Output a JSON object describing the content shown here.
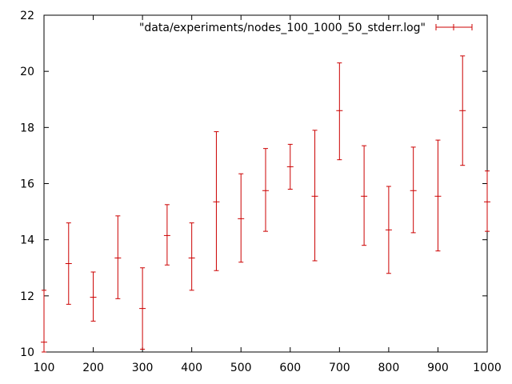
{
  "chart_data": {
    "type": "scatter",
    "style": "errorbars",
    "series": [
      {
        "name": "\"data/experiments/nodes_100_1000_50_stderr.log\"",
        "color": "#cc0000",
        "x": [
          100,
          150,
          200,
          250,
          300,
          350,
          400,
          450,
          500,
          550,
          600,
          650,
          700,
          750,
          800,
          850,
          900,
          950,
          1000
        ],
        "y": [
          10.35,
          13.15,
          11.95,
          13.35,
          11.55,
          14.15,
          13.35,
          15.35,
          14.75,
          15.75,
          16.6,
          15.55,
          18.6,
          15.55,
          14.35,
          15.75,
          15.55,
          18.6,
          15.35
        ],
        "ylow": [
          10.0,
          11.7,
          11.1,
          11.9,
          10.1,
          13.1,
          12.2,
          12.9,
          13.2,
          14.3,
          15.8,
          13.25,
          16.85,
          13.8,
          12.8,
          14.25,
          13.6,
          16.65,
          14.3
        ],
        "yhigh": [
          12.2,
          14.6,
          12.85,
          14.85,
          13.0,
          15.25,
          14.6,
          17.85,
          16.35,
          17.25,
          17.4,
          17.9,
          20.3,
          17.35,
          15.9,
          17.3,
          17.55,
          20.55,
          16.45
        ]
      }
    ],
    "xlim": [
      100,
      1000
    ],
    "ylim": [
      10,
      22
    ],
    "xticks": [
      "100",
      "200",
      "300",
      "400",
      "500",
      "600",
      "700",
      "800",
      "900",
      "1000"
    ],
    "yticks": [
      "10",
      "12",
      "14",
      "16",
      "18",
      "20",
      "22"
    ],
    "title": "",
    "xlabel": "",
    "ylabel": "",
    "grid": false,
    "legend_position": "top-right"
  }
}
